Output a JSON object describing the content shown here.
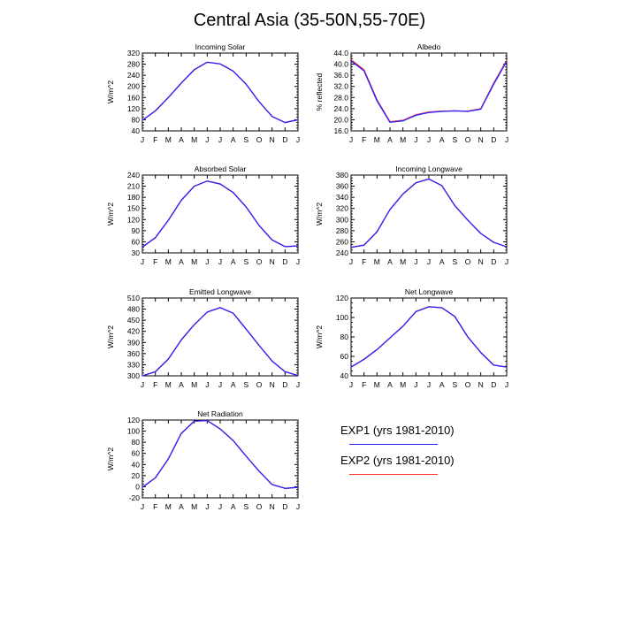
{
  "title": "Central Asia (35-50N,55-70E)",
  "months": [
    "J",
    "F",
    "M",
    "A",
    "M",
    "J",
    "J",
    "A",
    "S",
    "O",
    "N",
    "D",
    "J"
  ],
  "colors": {
    "EXP1": "#2222ff",
    "EXP2": "#ff3333",
    "axis": "#000000"
  },
  "legend": [
    {
      "label": "EXP1 (yrs 1981-2010)",
      "color": "#2222ff"
    },
    {
      "label": "EXP2 (yrs 1981-2010)",
      "color": "#ff3333"
    }
  ],
  "chart_data": [
    {
      "type": "line",
      "title": "Incoming Solar",
      "ylabel": "W/m^2",
      "ylim": [
        40,
        320
      ],
      "yticks": [
        "40",
        "80",
        "120",
        "160",
        "200",
        "240",
        "280",
        "320"
      ],
      "series": [
        {
          "name": "EXP1 (yrs 1981-2010)",
          "values": [
            78,
            112,
            160,
            212,
            260,
            287,
            281,
            255,
            208,
            145,
            92,
            70,
            80
          ]
        },
        {
          "name": "EXP2 (yrs 1981-2010)",
          "values": [
            78,
            112,
            160,
            212,
            260,
            287,
            281,
            255,
            208,
            145,
            92,
            70,
            80
          ]
        }
      ]
    },
    {
      "type": "line",
      "title": "Albedo",
      "ylabel": "% reflected",
      "ylim": [
        16,
        44
      ],
      "yticks": [
        "16.0",
        "20.0",
        "24.0",
        "28.0",
        "32.0",
        "36.0",
        "40.0",
        "44.0"
      ],
      "series": [
        {
          "name": "EXP1 (yrs 1981-2010)",
          "values": [
            41.2,
            37.6,
            26.8,
            19.1,
            19.6,
            21.6,
            22.6,
            23.0,
            23.2,
            23.0,
            23.8,
            32.8,
            41.0
          ]
        },
        {
          "name": "EXP2 (yrs 1981-2010)",
          "values": [
            41.6,
            38.0,
            27.2,
            19.3,
            19.8,
            21.8,
            22.8,
            23.1,
            23.2,
            23.1,
            24.0,
            33.2,
            41.4
          ]
        }
      ]
    },
    {
      "type": "line",
      "title": "Absorbed Solar",
      "ylabel": "W/m^2",
      "ylim": [
        30,
        240
      ],
      "yticks": [
        "30",
        "60",
        "90",
        "120",
        "150",
        "180",
        "210",
        "240"
      ],
      "series": [
        {
          "name": "EXP1 (yrs 1981-2010)",
          "values": [
            46,
            71,
            118,
            172,
            210,
            224,
            216,
            193,
            154,
            104,
            65,
            47,
            49
          ]
        },
        {
          "name": "EXP2 (yrs 1981-2010)",
          "values": [
            46,
            71,
            118,
            172,
            210,
            224,
            216,
            193,
            154,
            104,
            65,
            47,
            49
          ]
        }
      ]
    },
    {
      "type": "line",
      "title": "Incoming Longwave",
      "ylabel": "W/m^2",
      "ylim": [
        240,
        380
      ],
      "yticks": [
        "240",
        "260",
        "280",
        "300",
        "320",
        "340",
        "360",
        "380"
      ],
      "series": [
        {
          "name": "EXP1 (yrs 1981-2010)",
          "values": [
            250,
            254,
            278,
            318,
            346,
            366,
            373,
            361,
            325,
            299,
            275,
            259,
            251
          ]
        },
        {
          "name": "EXP2 (yrs 1981-2010)",
          "values": [
            250,
            254,
            278,
            318,
            346,
            366,
            373,
            361,
            325,
            299,
            275,
            259,
            251
          ]
        }
      ]
    },
    {
      "type": "line",
      "title": "Emitted Longwave",
      "ylabel": "W/m^2",
      "ylim": [
        300,
        510
      ],
      "yticks": [
        "300",
        "330",
        "360",
        "390",
        "420",
        "450",
        "480",
        "510"
      ],
      "series": [
        {
          "name": "EXP1 (yrs 1981-2010)",
          "values": [
            300,
            311,
            345,
            397,
            438,
            472,
            484,
            469,
            426,
            382,
            340,
            311,
            301
          ]
        },
        {
          "name": "EXP2 (yrs 1981-2010)",
          "values": [
            300,
            311,
            345,
            397,
            438,
            472,
            484,
            469,
            426,
            382,
            340,
            311,
            301
          ]
        }
      ]
    },
    {
      "type": "line",
      "title": "Net Longwave",
      "ylabel": "W/m^2",
      "ylim": [
        40,
        120
      ],
      "yticks": [
        "40",
        "60",
        "80",
        "100",
        "120"
      ],
      "series": [
        {
          "name": "EXP1 (yrs 1981-2010)",
          "values": [
            49,
            57,
            67,
            79,
            91,
            106,
            111,
            110,
            101,
            80,
            64,
            51,
            49
          ]
        },
        {
          "name": "EXP2 (yrs 1981-2010)",
          "values": [
            49,
            57,
            67,
            79,
            91,
            106,
            111,
            110,
            101,
            80,
            64,
            51,
            49
          ]
        }
      ]
    },
    {
      "type": "line",
      "title": "Net Radiation",
      "ylabel": "W/m^2",
      "ylim": [
        -20,
        120
      ],
      "yticks": [
        "-20",
        "0",
        "20",
        "40",
        "60",
        "80",
        "100",
        "120"
      ],
      "series": [
        {
          "name": "EXP1 (yrs 1981-2010)",
          "values": [
            -1,
            16,
            50,
            96,
            118,
            119,
            104,
            83,
            55,
            28,
            4,
            -3,
            -1
          ]
        },
        {
          "name": "EXP2 (yrs 1981-2010)",
          "values": [
            -1,
            16,
            50,
            96,
            118,
            119,
            104,
            83,
            55,
            28,
            4,
            -3,
            -1
          ]
        }
      ]
    }
  ]
}
